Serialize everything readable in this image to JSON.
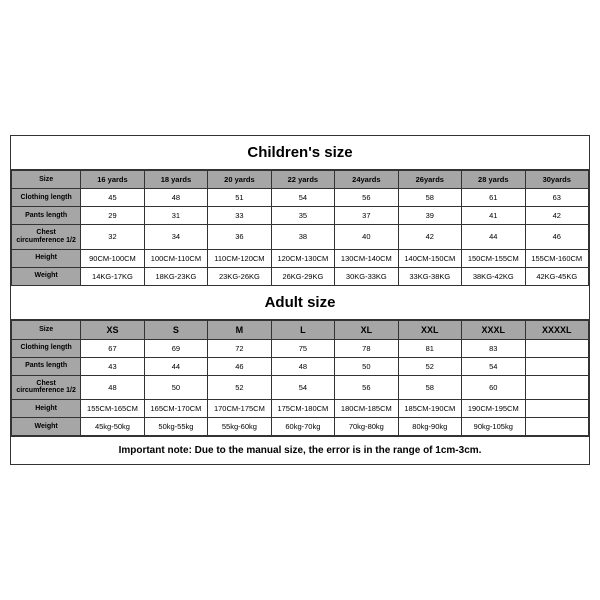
{
  "children": {
    "title": "Children's size",
    "size_header": "Size",
    "sizes": [
      "16 yards",
      "18 yards",
      "20 yards",
      "22 yards",
      "24yards",
      "26yards",
      "28 yards",
      "30yards"
    ],
    "rows": [
      {
        "label": "Clothing length",
        "cells": [
          "45",
          "48",
          "51",
          "54",
          "56",
          "58",
          "61",
          "63"
        ]
      },
      {
        "label": "Pants length",
        "cells": [
          "29",
          "31",
          "33",
          "35",
          "37",
          "39",
          "41",
          "42"
        ]
      },
      {
        "label": "Chest circumference 1/2",
        "cells": [
          "32",
          "34",
          "36",
          "38",
          "40",
          "42",
          "44",
          "46"
        ]
      },
      {
        "label": "Height",
        "cells": [
          "90CM-100CM",
          "100CM-110CM",
          "110CM-120CM",
          "120CM-130CM",
          "130CM-140CM",
          "140CM-150CM",
          "150CM-155CM",
          "155CM-160CM"
        ]
      },
      {
        "label": "Weight",
        "cells": [
          "14KG-17KG",
          "18KG-23KG",
          "23KG-26KG",
          "26KG-29KG",
          "30KG-33KG",
          "33KG-38KG",
          "38KG-42KG",
          "42KG-45KG"
        ]
      }
    ]
  },
  "adult": {
    "title": "Adult size",
    "size_header": "Size",
    "sizes": [
      "XS",
      "S",
      "M",
      "L",
      "XL",
      "XXL",
      "XXXL",
      "XXXXL"
    ],
    "rows": [
      {
        "label": "Clothing length",
        "cells": [
          "67",
          "69",
          "72",
          "75",
          "78",
          "81",
          "83",
          ""
        ]
      },
      {
        "label": "Pants length",
        "cells": [
          "43",
          "44",
          "46",
          "48",
          "50",
          "52",
          "54",
          ""
        ]
      },
      {
        "label": "Chest circumference 1/2",
        "cells": [
          "48",
          "50",
          "52",
          "54",
          "56",
          "58",
          "60",
          ""
        ]
      },
      {
        "label": "Height",
        "cells": [
          "155CM-165CM",
          "165CM-170CM",
          "170CM-175CM",
          "175CM-180CM",
          "180CM-185CM",
          "185CM-190CM",
          "190CM-195CM",
          ""
        ]
      },
      {
        "label": "Weight",
        "cells": [
          "45kg-50kg",
          "50kg-55kg",
          "55kg-60kg",
          "60kg-70kg",
          "70kg-80kg",
          "80kg-90kg",
          "90kg-105kg",
          ""
        ]
      }
    ],
    "note": "Important note: Due to the manual size, the error is in the range of 1cm-3cm."
  },
  "style": {
    "header_bg": "#a6a6a6",
    "border_color": "#333333",
    "bg": "#ffffff"
  }
}
